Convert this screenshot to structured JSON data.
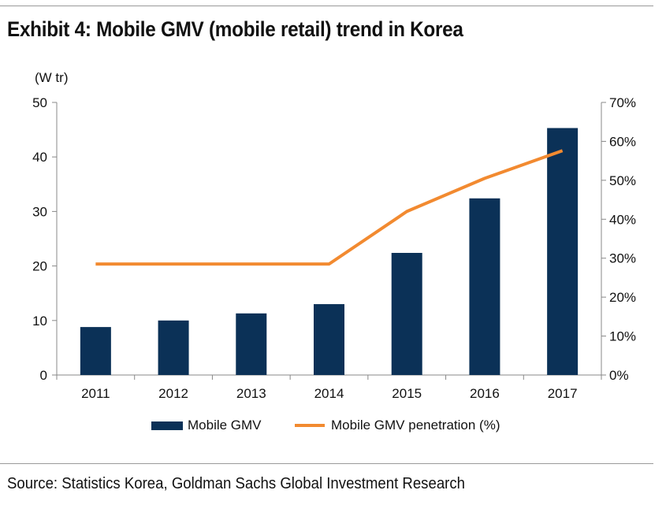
{
  "title": "Exhibit 4: Mobile GMV (mobile retail) trend in Korea",
  "source": "Source: Statistics Korea, Goldman Sachs Global Investment Research",
  "colors": {
    "bar": "#0b3157",
    "line": "#f28a30",
    "axis": "#888888"
  },
  "chart_data": {
    "type": "bar",
    "title": "Exhibit 4: Mobile GMV (mobile retail) trend in Korea",
    "categories": [
      "2011",
      "2012",
      "2013",
      "2014",
      "2015",
      "2016",
      "2017"
    ],
    "y_unit_label": "(W tr)",
    "ylim": [
      0,
      50
    ],
    "yticks": [
      0,
      10,
      20,
      30,
      40,
      50
    ],
    "y2lim": [
      0,
      70
    ],
    "y2ticks": [
      "0%",
      "10%",
      "20%",
      "30%",
      "40%",
      "50%",
      "60%",
      "70%"
    ],
    "grid": false,
    "legend_position": "bottom",
    "series": [
      {
        "name": "Mobile GMV",
        "type": "bar",
        "axis": "left",
        "values": [
          8.8,
          10.0,
          11.3,
          13.0,
          22.4,
          32.4,
          45.3
        ]
      },
      {
        "name": "Mobile GMV penetration (%)",
        "type": "line",
        "axis": "right",
        "values": [
          28.5,
          28.5,
          28.5,
          28.5,
          42.0,
          50.5,
          57.6
        ]
      }
    ]
  }
}
